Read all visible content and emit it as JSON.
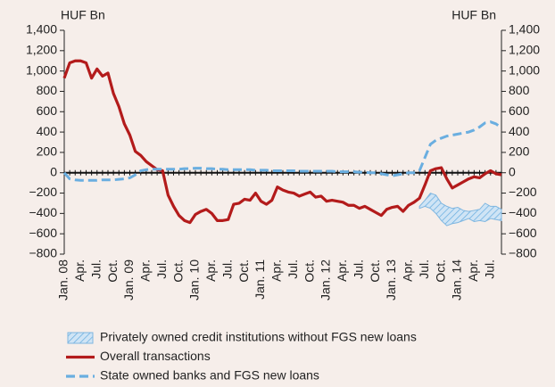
{
  "chart_data": {
    "type": "line",
    "y_unit_label": "HUF Bn",
    "y2_unit_label": "HUF Bn",
    "categories": [
      "Jan. 08",
      null,
      null,
      "Apr.",
      null,
      null,
      "Jul.",
      null,
      null,
      "Oct.",
      null,
      null,
      "Jan. 09",
      null,
      null,
      "Apr.",
      null,
      null,
      "Jul.",
      null,
      null,
      "Oct.",
      null,
      null,
      "Jan. 10",
      null,
      null,
      "Apr.",
      null,
      null,
      "Jul.",
      null,
      null,
      "Oct.",
      null,
      null,
      "Jan. 11",
      null,
      null,
      "Apr.",
      null,
      null,
      "Jul.",
      null,
      null,
      "Oct.",
      null,
      null,
      "Jan. 12",
      null,
      null,
      "Apr.",
      null,
      null,
      "Jul.",
      null,
      null,
      "Oct.",
      null,
      null,
      "Jan. 13",
      null,
      null,
      "Apr.",
      null,
      null,
      "Jul.",
      null,
      null,
      "Oct.",
      null,
      null,
      "Jan. 14",
      null,
      null,
      "Apr.",
      null,
      null,
      "Jul.",
      null,
      null
    ],
    "series": [
      {
        "name": "Privately owned credit institutions without FGS new loans",
        "color": "#7fb6e0",
        "style": "band",
        "upper": [
          null,
          null,
          null,
          null,
          null,
          null,
          null,
          null,
          null,
          null,
          null,
          null,
          null,
          null,
          null,
          null,
          null,
          null,
          null,
          null,
          null,
          null,
          null,
          null,
          null,
          null,
          null,
          null,
          null,
          null,
          null,
          null,
          null,
          null,
          null,
          null,
          null,
          null,
          null,
          null,
          null,
          null,
          null,
          null,
          null,
          null,
          null,
          null,
          null,
          null,
          null,
          null,
          null,
          null,
          null,
          null,
          null,
          null,
          null,
          null,
          null,
          null,
          null,
          null,
          null,
          -330,
          -270,
          -200,
          -220,
          -300,
          -330,
          -350,
          -340,
          -370,
          -380,
          -370,
          -360,
          -300,
          -330,
          -330,
          -360
        ],
        "lower": [
          null,
          null,
          null,
          null,
          null,
          null,
          null,
          null,
          null,
          null,
          null,
          null,
          null,
          null,
          null,
          null,
          null,
          null,
          null,
          null,
          null,
          null,
          null,
          null,
          null,
          null,
          null,
          null,
          null,
          null,
          null,
          null,
          null,
          null,
          null,
          null,
          null,
          null,
          null,
          null,
          null,
          null,
          null,
          null,
          null,
          null,
          null,
          null,
          null,
          null,
          null,
          null,
          null,
          null,
          null,
          null,
          null,
          null,
          null,
          null,
          null,
          null,
          null,
          null,
          null,
          -350,
          -330,
          -350,
          -400,
          -470,
          -520,
          -500,
          -490,
          -470,
          -450,
          -480,
          -470,
          -480,
          -450,
          -460,
          -470
        ]
      },
      {
        "name": "Overall transactions",
        "color": "#b31b1b",
        "style": "solid",
        "values": [
          930,
          1080,
          1100,
          1100,
          1080,
          930,
          1020,
          950,
          980,
          780,
          650,
          480,
          370,
          210,
          170,
          110,
          70,
          30,
          20,
          -220,
          -330,
          -420,
          -470,
          -490,
          -410,
          -380,
          -360,
          -400,
          -470,
          -470,
          -460,
          -310,
          -300,
          -260,
          -270,
          -200,
          -280,
          -310,
          -270,
          -140,
          -170,
          -190,
          -200,
          -230,
          -210,
          -190,
          -240,
          -230,
          -280,
          -270,
          -280,
          -290,
          -320,
          -320,
          -350,
          -330,
          -360,
          -390,
          -420,
          -360,
          -340,
          -330,
          -380,
          -320,
          -290,
          -250,
          -120,
          20,
          40,
          50,
          -60,
          -150,
          -120,
          -90,
          -60,
          -40,
          -50,
          -10,
          20,
          -10,
          -20
        ]
      },
      {
        "name": "State owned banks and FGS new loans",
        "color": "#6aaee0",
        "style": "dashed",
        "values": [
          0,
          -60,
          -70,
          -75,
          -75,
          -75,
          -75,
          -70,
          -70,
          -70,
          -65,
          -60,
          -50,
          -20,
          20,
          30,
          35,
          35,
          35,
          35,
          35,
          35,
          40,
          40,
          45,
          45,
          40,
          40,
          35,
          35,
          30,
          30,
          30,
          30,
          30,
          25,
          25,
          25,
          20,
          20,
          20,
          20,
          20,
          15,
          15,
          15,
          15,
          15,
          15,
          15,
          10,
          10,
          10,
          10,
          5,
          5,
          0,
          0,
          -10,
          -20,
          -30,
          -20,
          -10,
          0,
          0,
          20,
          150,
          280,
          320,
          340,
          360,
          370,
          380,
          390,
          400,
          420,
          450,
          490,
          500,
          480,
          440
        ]
      }
    ],
    "ylim": [
      -800,
      1400
    ],
    "yticks": [
      {
        "value": -800,
        "label": "−800"
      },
      {
        "value": -600,
        "label": "−600"
      },
      {
        "value": -400,
        "label": "−400"
      },
      {
        "value": -200,
        "label": "−200"
      },
      0,
      200,
      400,
      600,
      800,
      {
        "value": 1000,
        "label": "1,000"
      },
      {
        "value": 1200,
        "label": "1,200"
      },
      {
        "value": 1400,
        "label": "1,400"
      }
    ],
    "y2lim": [
      -800,
      1400
    ],
    "y2ticks": [
      {
        "value": -800,
        "label": "−800"
      },
      {
        "value": -600,
        "label": "−600"
      },
      {
        "value": -400,
        "label": "−400"
      },
      {
        "value": -200,
        "label": "−200"
      },
      0,
      200,
      400,
      600,
      800,
      {
        "value": 1000,
        "label": "1,000"
      },
      {
        "value": 1200,
        "label": "1,200"
      },
      {
        "value": 1400,
        "label": "1,400"
      }
    ],
    "grid": false,
    "legend": "bottom"
  }
}
